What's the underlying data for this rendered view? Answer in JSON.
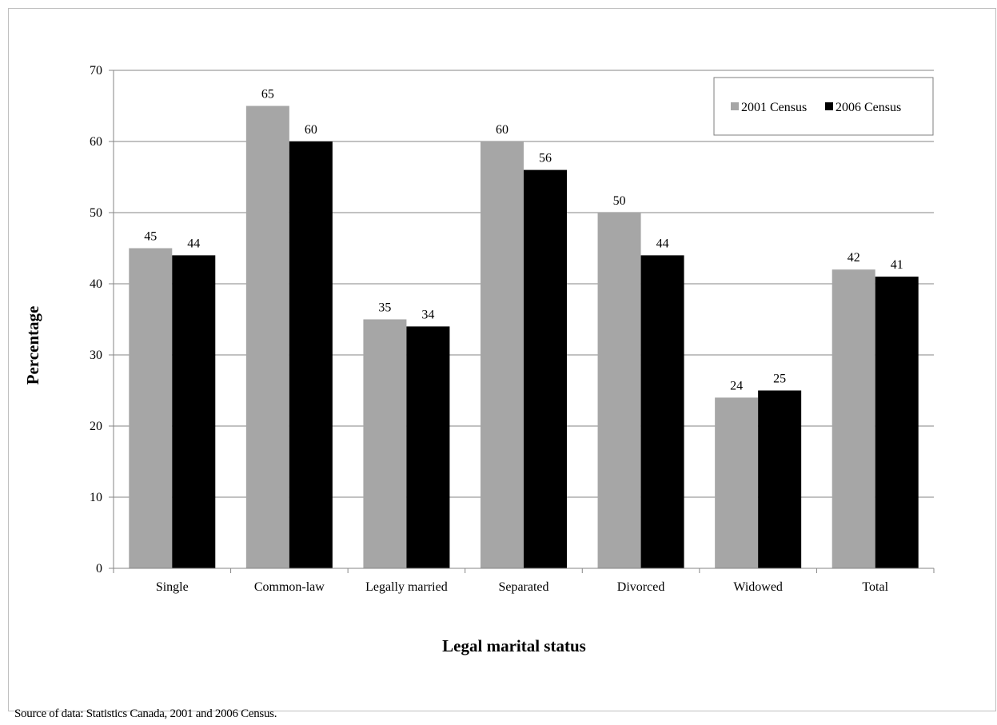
{
  "chart_data": {
    "type": "bar",
    "categories": [
      "Single",
      "Common-law",
      "Legally married",
      "Separated",
      "Divorced",
      "Widowed",
      "Total"
    ],
    "series": [
      {
        "name": "2001 Census",
        "values": [
          45,
          65,
          35,
          60,
          50,
          24,
          42
        ],
        "color": "#a6a6a6"
      },
      {
        "name": "2006 Census",
        "values": [
          44,
          60,
          34,
          56,
          44,
          25,
          41
        ],
        "color": "#000000"
      }
    ],
    "title": "",
    "xlabel": "Legal marital status",
    "ylabel": "Percentage",
    "ylim": [
      0,
      70
    ],
    "yticks": [
      0,
      10,
      20,
      30,
      40,
      50,
      60,
      70
    ],
    "grid": true,
    "legend_position": "top-right",
    "data_labels": true
  },
  "source_note": "Source of data:  Statistics Canada, 2001 and 2006 Census."
}
